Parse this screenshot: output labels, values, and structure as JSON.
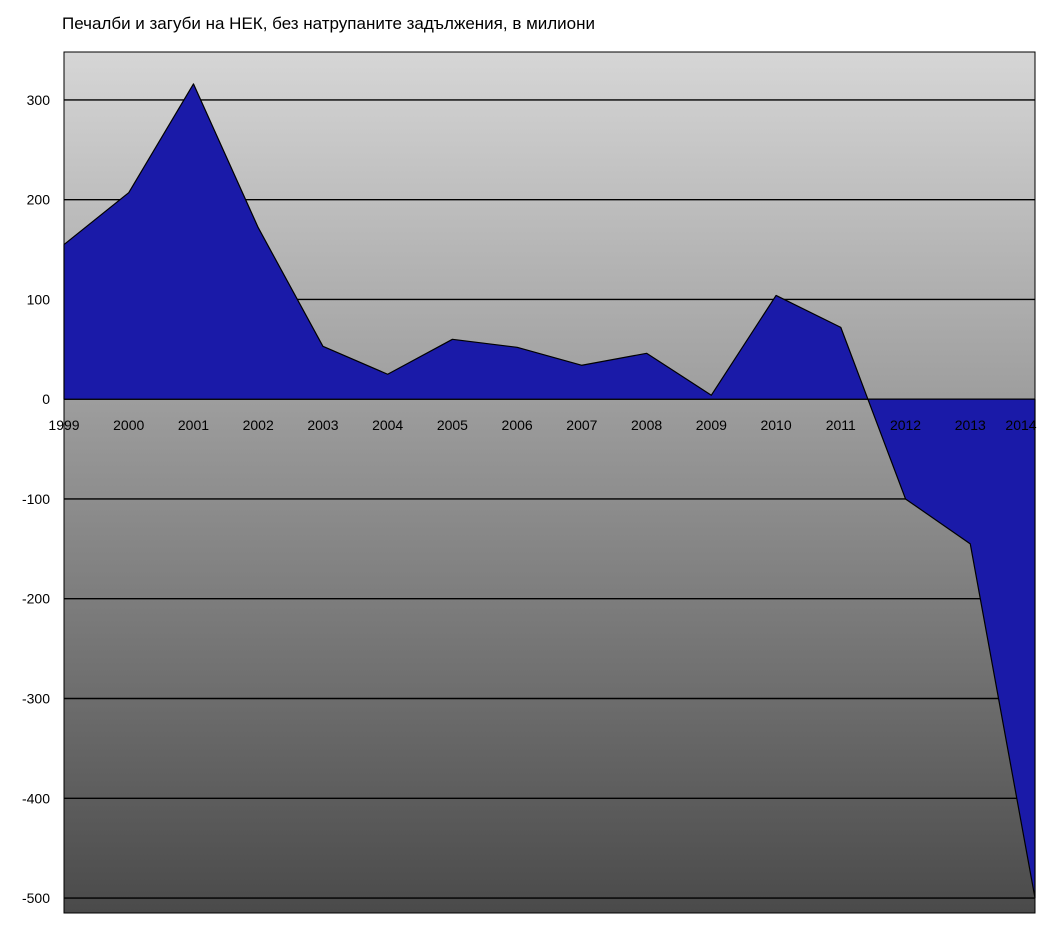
{
  "chart_data": {
    "type": "area",
    "title": "Печалби и загуби на НЕК, без натрупаните задължения, в милиони",
    "xlabel": "",
    "ylabel": "",
    "x": [
      "1999",
      "2000",
      "2001",
      "2002",
      "2003",
      "2004",
      "2005",
      "2006",
      "2007",
      "2008",
      "2009",
      "2010",
      "2011",
      "2012",
      "2013",
      "2014"
    ],
    "series": [
      {
        "values": [
          155,
          207,
          316,
          172,
          53,
          25,
          60,
          52,
          34,
          46,
          4,
          104,
          72,
          -100,
          -145,
          -500
        ]
      }
    ],
    "ylim": [
      -515,
      348
    ],
    "yticks": [
      -500,
      -400,
      -300,
      -200,
      -100,
      0,
      100,
      200,
      300
    ],
    "grid": true,
    "legend": "none",
    "colors": {
      "series_fill": "#1a1aa8",
      "series_stroke": "#000000",
      "plot_bg_top": "#d6d6d6",
      "plot_bg_bottom": "#4a4a4a",
      "gridline": "#000000"
    }
  }
}
